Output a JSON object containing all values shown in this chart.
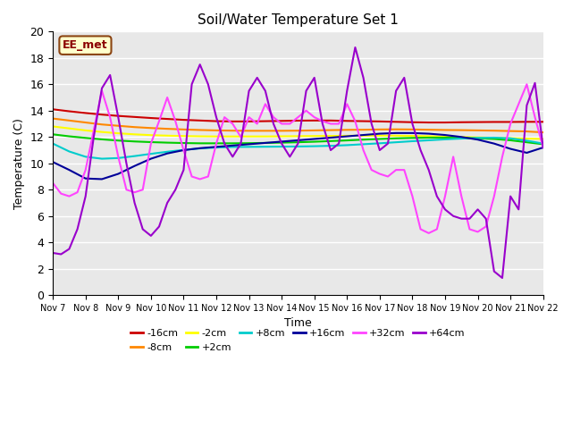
{
  "title": "Soil/Water Temperature Set 1",
  "xlabel": "Time",
  "ylabel": "Temperature (C)",
  "ylim": [
    0,
    20
  ],
  "background_color": "#e8e8e8",
  "annotation_text": "EE_met",
  "x_tick_labels": [
    "Nov 7",
    "Nov 8",
    "Nov 9",
    "Nov 10",
    "Nov 11",
    "Nov 12",
    "Nov 13",
    "Nov 14",
    "Nov 15",
    "Nov 16",
    "Nov 17",
    "Nov 18",
    "Nov 19",
    "Nov 20",
    "Nov 21",
    "Nov 22"
  ],
  "series": {
    "-16cm": {
      "color": "#cc0000",
      "data_y": [
        14.1,
        13.95,
        13.82,
        13.7,
        13.6,
        13.52,
        13.44,
        13.37,
        13.3,
        13.25,
        13.2,
        13.18,
        13.18,
        13.2,
        13.22,
        13.24,
        13.25,
        13.25,
        13.22,
        13.2,
        13.18,
        13.15,
        13.12,
        13.1,
        13.1,
        13.12,
        13.13,
        13.14,
        13.14,
        13.15,
        13.15
      ]
    },
    "-8cm": {
      "color": "#ff8800",
      "data_y": [
        13.4,
        13.25,
        13.1,
        12.95,
        12.85,
        12.75,
        12.68,
        12.62,
        12.57,
        12.53,
        12.5,
        12.48,
        12.47,
        12.47,
        12.47,
        12.48,
        12.5,
        12.52,
        12.54,
        12.55,
        12.57,
        12.58,
        12.57,
        12.55,
        12.53,
        12.52,
        12.5,
        12.48,
        12.45,
        12.42,
        12.35
      ]
    },
    "-2cm": {
      "color": "#ffff00",
      "data_y": [
        12.8,
        12.65,
        12.5,
        12.38,
        12.28,
        12.2,
        12.14,
        12.1,
        12.07,
        12.05,
        12.04,
        12.04,
        12.04,
        12.04,
        12.05,
        12.06,
        12.07,
        12.08,
        12.09,
        12.1,
        12.1,
        12.1,
        12.08,
        12.06,
        12.03,
        12.0,
        11.97,
        11.94,
        11.91,
        11.88,
        11.85
      ]
    },
    "+2cm": {
      "color": "#00cc00",
      "data_y": [
        12.2,
        12.05,
        11.93,
        11.82,
        11.73,
        11.66,
        11.61,
        11.57,
        11.54,
        11.52,
        11.52,
        11.52,
        11.53,
        11.55,
        11.57,
        11.6,
        11.64,
        11.69,
        11.74,
        11.8,
        11.85,
        11.9,
        11.93,
        11.95,
        11.95,
        11.93,
        11.9,
        11.85,
        11.75,
        11.6,
        11.45
      ]
    },
    "+8cm": {
      "color": "#00cccc",
      "data_y": [
        11.5,
        10.9,
        10.5,
        10.35,
        10.4,
        10.55,
        10.72,
        10.88,
        11.02,
        11.13,
        11.2,
        11.24,
        11.25,
        11.26,
        11.27,
        11.28,
        11.3,
        11.33,
        11.38,
        11.45,
        11.52,
        11.6,
        11.68,
        11.75,
        11.82,
        11.88,
        11.93,
        11.95,
        11.9,
        11.72,
        11.5
      ]
    },
    "+16cm": {
      "color": "#000099",
      "data_y": [
        10.1,
        9.5,
        8.85,
        8.8,
        9.2,
        9.8,
        10.35,
        10.75,
        11.0,
        11.15,
        11.25,
        11.35,
        11.45,
        11.55,
        11.65,
        11.75,
        11.85,
        11.95,
        12.05,
        12.15,
        12.25,
        12.3,
        12.3,
        12.25,
        12.15,
        12.0,
        11.8,
        11.5,
        11.1,
        10.8,
        11.2
      ]
    },
    "+32cm": {
      "color": "#ff44ff",
      "data_x_fine": true,
      "data_y": [
        8.5,
        7.7,
        7.5,
        7.8,
        9.5,
        12.5,
        15.5,
        13.5,
        10.5,
        8.0,
        7.8,
        8.0,
        11.5,
        13.2,
        15.0,
        13.2,
        11.0,
        9.0,
        8.8,
        9.0,
        11.5,
        13.5,
        13.0,
        12.0,
        13.5,
        13.0,
        14.5,
        13.5,
        13.0,
        13.0,
        13.5,
        14.0,
        13.5,
        13.2,
        13.0,
        13.0,
        14.5,
        13.2,
        11.0,
        9.5,
        9.2,
        9.0,
        9.5,
        9.5,
        7.5,
        5.0,
        4.7,
        5.0,
        7.5,
        10.5,
        7.5,
        5.0,
        4.8,
        5.2,
        7.5,
        10.5,
        13.0,
        14.5,
        16.0,
        13.5,
        11.2
      ]
    },
    "+64cm": {
      "color": "#9900cc",
      "data_x_fine": true,
      "data_y": [
        3.2,
        3.1,
        3.5,
        5.0,
        7.5,
        12.0,
        15.7,
        16.7,
        13.5,
        10.0,
        7.0,
        5.0,
        4.5,
        5.2,
        7.0,
        8.0,
        9.5,
        16.0,
        17.5,
        16.0,
        13.5,
        11.5,
        10.5,
        11.5,
        15.5,
        16.5,
        15.5,
        13.0,
        11.5,
        10.5,
        11.5,
        15.5,
        16.5,
        13.0,
        11.0,
        11.5,
        15.5,
        18.8,
        16.5,
        13.0,
        11.0,
        11.5,
        15.5,
        16.5,
        13.0,
        11.0,
        9.5,
        7.5,
        6.5,
        6.0,
        5.8,
        5.8,
        6.5,
        5.8,
        1.8,
        1.3,
        7.5,
        6.5,
        14.4,
        16.1,
        11.2
      ]
    }
  }
}
